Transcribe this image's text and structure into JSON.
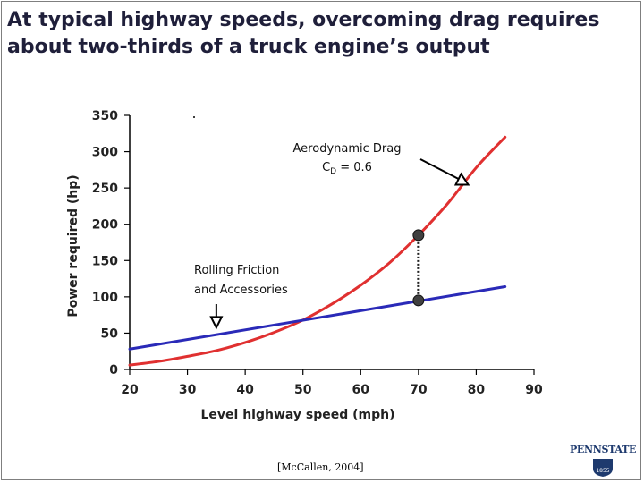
{
  "slide": {
    "title_line1": "At typical highway speeds, overcoming drag requires",
    "title_line2": "about two-thirds of a truck engine’s output",
    "citation": "[McCallen, 2004]",
    "logo_text": "PENNSTATE",
    "logo_year": "1855"
  },
  "colors": {
    "title": "#1f1f3a",
    "drag_curve": "#e03030",
    "rolling_line": "#2a2ab8",
    "axis": "#000000",
    "marker": "#404040"
  },
  "chart_data": {
    "type": "line",
    "title": "",
    "xlabel": "Level highway speed (mph)",
    "ylabel": "Power required (hp)",
    "xlim": [
      20,
      90
    ],
    "ylim": [
      0,
      350
    ],
    "xticks": [
      20,
      30,
      40,
      50,
      60,
      70,
      80,
      90
    ],
    "yticks": [
      0,
      50,
      100,
      150,
      200,
      250,
      300,
      350
    ],
    "grid": false,
    "series": [
      {
        "name": "Aerodynamic Drag",
        "color": "#e03030",
        "x": [
          20,
          25,
          30,
          35,
          40,
          45,
          50,
          55,
          60,
          65,
          70,
          75,
          80,
          85
        ],
        "y": [
          6,
          11,
          18,
          26,
          37,
          51,
          68,
          90,
          116,
          147,
          185,
          228,
          278,
          320
        ]
      },
      {
        "name": "Rolling Friction and Accessories",
        "color": "#2a2ab8",
        "x": [
          20,
          85
        ],
        "y": [
          28,
          114
        ]
      }
    ],
    "annotations": [
      {
        "id": "drag",
        "line1": "Aerodynamic Drag",
        "line2_prefix": "C",
        "line2_sub": "D",
        "line2_suffix": " = 0.6",
        "arrow_to_x": 78,
        "arrow_to_y": 257
      },
      {
        "id": "rolling",
        "line1": "Rolling Friction",
        "line2": "and Accessories",
        "arrow_to_x": 35,
        "arrow_to_y": 55
      }
    ],
    "markers": [
      {
        "x": 70,
        "y": 185
      },
      {
        "x": 70,
        "y": 95
      }
    ]
  }
}
